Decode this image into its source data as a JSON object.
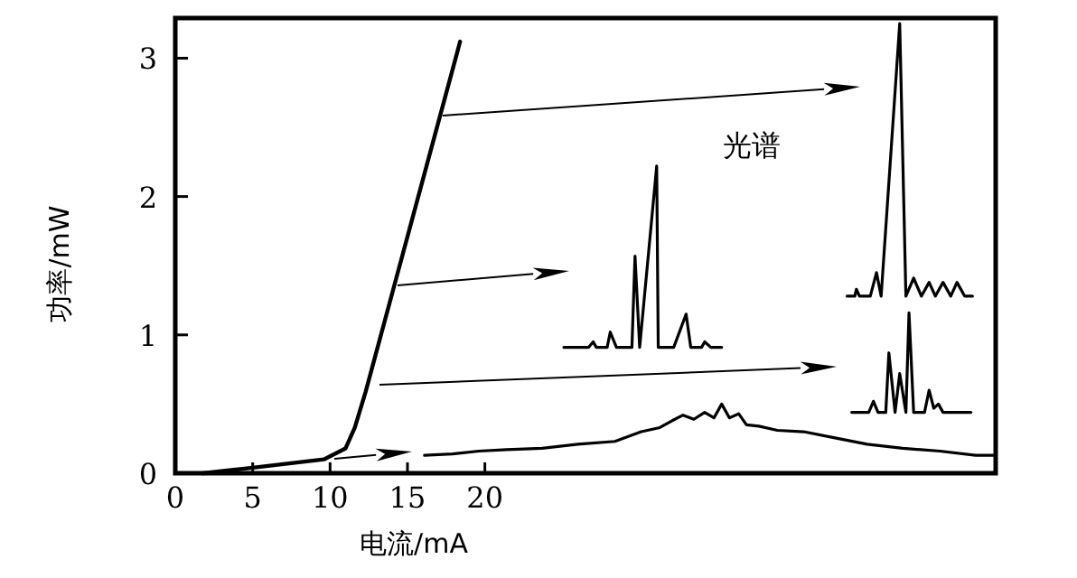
{
  "chart_data": {
    "type": "line",
    "xlabel": "电流/mA",
    "ylabel": "功率/mW",
    "annotations": [
      "光谱"
    ],
    "x": [
      1.8,
      5,
      9.6,
      11,
      11.6,
      12.3,
      14.3,
      18.4
    ],
    "series": [
      {
        "color": "#000000",
        "values": [
          0,
          0.04,
          0.1,
          0.18,
          0.33,
          0.59,
          1.42,
          3.12
        ]
      },
      {
        "color": "#000000",
        "x": [
          25.1,
          26.7,
          27.0,
          27.2,
          27.9,
          28.1,
          28.5,
          29.5,
          29.7,
          30.0,
          31.1,
          31.2,
          32.2,
          33.0,
          33.3,
          34.0,
          34.2,
          34.6,
          35.3
        ],
        "values": [
          0.91,
          0.91,
          0.95,
          0.91,
          0.91,
          1.02,
          0.91,
          0.91,
          1.57,
          0.91,
          2.22,
          0.91,
          0.91,
          1.15,
          0.91,
          0.91,
          0.95,
          0.91,
          0.91
        ]
      },
      {
        "color": "#000000",
        "x": [
          43.7,
          44.8,
          45.1,
          45.4,
          45.9,
          46.1,
          46.5,
          46.8,
          47.2,
          47.4,
          47.7,
          48.4,
          48.7,
          49.0,
          49.3,
          49.6,
          51.4
        ],
        "values": [
          0.44,
          0.44,
          0.52,
          0.44,
          0.44,
          0.87,
          0.44,
          0.72,
          0.44,
          1.16,
          0.44,
          0.44,
          0.6,
          0.47,
          0.5,
          0.44,
          0.44
        ]
      },
      {
        "color": "#000000",
        "x": [
          43.4,
          43.9,
          44.0,
          44.2,
          44.9,
          45.3,
          45.6,
          46.8,
          47.2,
          47.7,
          48.2,
          48.7,
          49.1,
          49.6,
          50.1,
          50.5,
          51.0,
          51.5
        ],
        "values": [
          1.28,
          1.28,
          1.33,
          1.28,
          1.28,
          1.45,
          1.28,
          3.25,
          1.28,
          1.41,
          1.28,
          1.38,
          1.28,
          1.38,
          1.28,
          1.38,
          1.28,
          1.28
        ]
      },
      {
        "color": "#000000",
        "x": [
          16.1,
          17.9,
          19.6,
          21.4,
          23.7,
          26.0,
          28.4,
          30.1,
          31.3,
          32.1,
          32.8,
          33.5,
          34.2,
          34.8,
          35.3,
          35.8,
          36.4,
          36.9,
          37.7,
          38.9,
          40.6,
          42.4,
          44.7,
          47.0,
          49.4,
          51.7,
          53.0
        ],
        "values": [
          0.13,
          0.14,
          0.16,
          0.17,
          0.18,
          0.21,
          0.23,
          0.3,
          0.33,
          0.38,
          0.42,
          0.39,
          0.44,
          0.4,
          0.5,
          0.4,
          0.43,
          0.35,
          0.34,
          0.31,
          0.3,
          0.26,
          0.21,
          0.18,
          0.16,
          0.13,
          0.13
        ]
      }
    ],
    "xlim": [
      0,
      53
    ],
    "ylim": [
      0,
      3.29
    ],
    "xticks": [
      0,
      5,
      10,
      15,
      20
    ],
    "yticks": [
      0,
      1,
      2,
      3
    ],
    "grid": false,
    "marker": "none",
    "line_style": "solid"
  }
}
